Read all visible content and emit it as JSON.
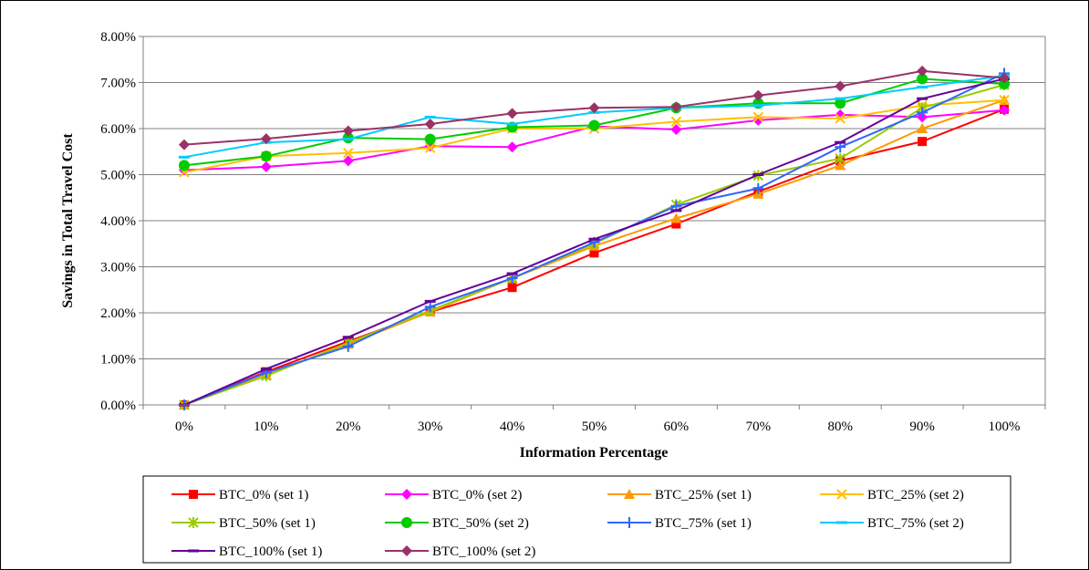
{
  "chart_data": {
    "type": "line",
    "title": "",
    "xlabel": "Information Percentage",
    "ylabel": "Savings in Total Travel Cost",
    "categories": [
      "0%",
      "10%",
      "20%",
      "30%",
      "40%",
      "50%",
      "60%",
      "70%",
      "80%",
      "90%",
      "100%"
    ],
    "y_ticks": [
      "0.00%",
      "1.00%",
      "2.00%",
      "3.00%",
      "4.00%",
      "5.00%",
      "6.00%",
      "7.00%",
      "8.00%"
    ],
    "ylim": [
      0,
      8
    ],
    "y_unit": "percent",
    "grid": "horizontal",
    "legend_position": "bottom",
    "series": [
      {
        "name": "BTC_0% (set 1)",
        "color": "#ff0000",
        "marker": "square",
        "values": [
          0.0,
          0.72,
          1.38,
          2.02,
          2.55,
          3.3,
          3.93,
          4.63,
          5.3,
          5.72,
          6.42
        ]
      },
      {
        "name": "BTC_0% (set 2)",
        "color": "#ff00ff",
        "marker": "diamond",
        "values": [
          5.1,
          5.17,
          5.3,
          5.62,
          5.6,
          6.05,
          5.98,
          6.18,
          6.3,
          6.25,
          6.4
        ]
      },
      {
        "name": "BTC_25% (set 1)",
        "color": "#ff9900",
        "marker": "triangle",
        "values": [
          0.0,
          0.65,
          1.32,
          2.02,
          2.75,
          3.45,
          4.05,
          4.58,
          5.2,
          6.0,
          6.62
        ]
      },
      {
        "name": "BTC_25% (set 2)",
        "color": "#ffc000",
        "marker": "x",
        "values": [
          5.05,
          5.4,
          5.47,
          5.58,
          6.0,
          6.0,
          6.15,
          6.25,
          6.22,
          6.5,
          6.62
        ]
      },
      {
        "name": "BTC_50% (set 1)",
        "color": "#99cc00",
        "marker": "asterisk",
        "values": [
          0.0,
          0.63,
          1.35,
          2.05,
          2.75,
          3.5,
          4.35,
          4.98,
          5.35,
          6.45,
          6.95
        ]
      },
      {
        "name": "BTC_50% (set 2)",
        "color": "#00cc00",
        "marker": "circle",
        "values": [
          5.2,
          5.4,
          5.8,
          5.77,
          6.03,
          6.07,
          6.45,
          6.55,
          6.55,
          7.08,
          6.97
        ]
      },
      {
        "name": "BTC_75% (set 1)",
        "color": "#3366ff",
        "marker": "plus",
        "values": [
          0.0,
          0.7,
          1.27,
          2.13,
          2.75,
          3.53,
          4.32,
          4.7,
          5.6,
          6.35,
          7.2
        ]
      },
      {
        "name": "BTC_75% (set 2)",
        "color": "#00ccff",
        "marker": "dash",
        "values": [
          5.38,
          5.7,
          5.77,
          6.25,
          6.1,
          6.35,
          6.45,
          6.5,
          6.65,
          6.9,
          7.15
        ]
      },
      {
        "name": "BTC_100% (set 1)",
        "color": "#660099",
        "marker": "dash",
        "values": [
          0.0,
          0.78,
          1.47,
          2.25,
          2.85,
          3.6,
          4.22,
          5.0,
          5.7,
          6.65,
          7.08
        ]
      },
      {
        "name": "BTC_100% (set 2)",
        "color": "#993366",
        "marker": "diamond",
        "values": [
          5.65,
          5.78,
          5.95,
          6.1,
          6.33,
          6.45,
          6.47,
          6.72,
          6.92,
          7.25,
          7.1
        ]
      }
    ]
  }
}
